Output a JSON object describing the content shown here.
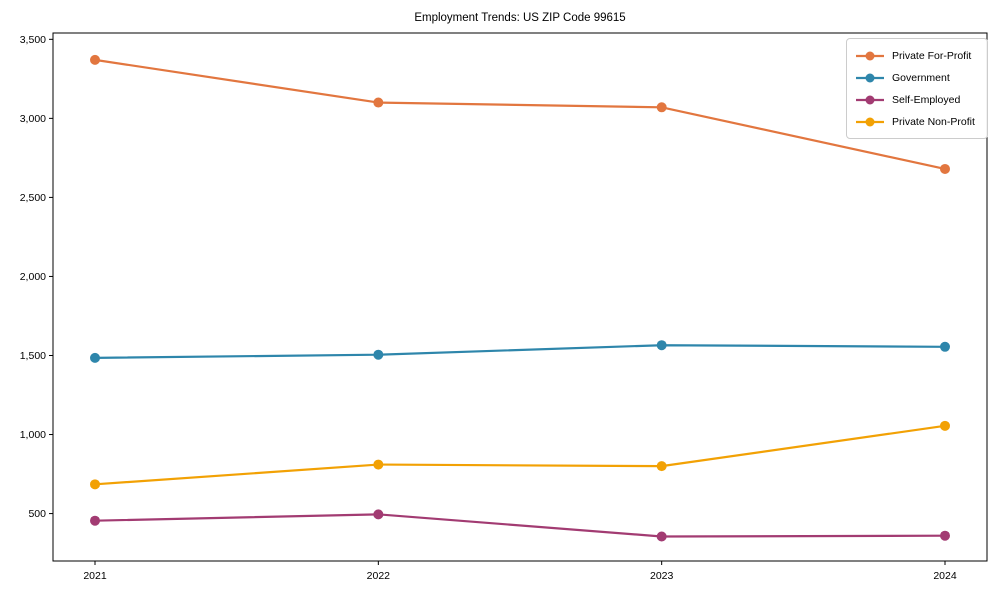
{
  "figure": {
    "title": "Employment Trends: US ZIP Code 99615"
  },
  "chart_data": {
    "type": "line",
    "title": "Employment Trends: US ZIP Code 99615",
    "xlabel": "",
    "ylabel": "",
    "x": [
      "2021",
      "2022",
      "2023",
      "2024"
    ],
    "series": [
      {
        "name": "Private For-Profit",
        "color": "#E2763F",
        "values": [
          3370,
          3100,
          3070,
          2680
        ]
      },
      {
        "name": "Government",
        "color": "#2E86AB",
        "values": [
          1485,
          1505,
          1565,
          1555
        ]
      },
      {
        "name": "Self-Employed",
        "color": "#A23B72",
        "values": [
          455,
          495,
          355,
          360
        ]
      },
      {
        "name": "Private Non-Profit",
        "color": "#F2A104",
        "values": [
          685,
          810,
          800,
          1055
        ]
      }
    ],
    "y_ticks": [
      500,
      1000,
      1500,
      2000,
      2500,
      3000,
      3500
    ],
    "y_tick_labels": [
      "500",
      "1,000",
      "1,500",
      "2,000",
      "2,500",
      "3,000",
      "3,500"
    ],
    "ylim": [
      200,
      3540
    ],
    "grid": false,
    "marker": "o",
    "legend_position": "upper right",
    "axis_color": "#000000",
    "background_color": "#ffffff"
  }
}
